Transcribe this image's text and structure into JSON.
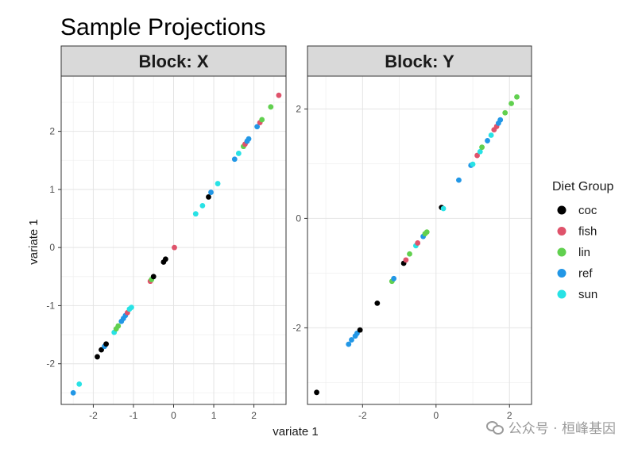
{
  "chart_data": {
    "type": "scatter",
    "title": "Sample Projections",
    "xlabel": "variate 1",
    "ylabel": "variate 1",
    "legend": {
      "title": "Diet Group",
      "entries": [
        {
          "name": "coc",
          "color": "#000000"
        },
        {
          "name": "fish",
          "color": "#DF536B"
        },
        {
          "name": "lin",
          "color": "#61D04F"
        },
        {
          "name": "ref",
          "color": "#2297E6"
        },
        {
          "name": "sun",
          "color": "#28E2E5"
        }
      ]
    },
    "panels": [
      {
        "strip": "Block: X",
        "xlim": [
          -2.8,
          2.8
        ],
        "ylim": [
          -2.7,
          2.95
        ],
        "xticks": [
          -2,
          -1,
          0,
          1,
          2
        ],
        "yticks": [
          -2,
          -1,
          0,
          1,
          2
        ],
        "points": [
          {
            "x": -2.5,
            "y": -2.5,
            "g": "ref"
          },
          {
            "x": -2.35,
            "y": -2.35,
            "g": "sun"
          },
          {
            "x": -1.9,
            "y": -1.88,
            "g": "coc"
          },
          {
            "x": -1.8,
            "y": -1.76,
            "g": "coc"
          },
          {
            "x": -1.72,
            "y": -1.7,
            "g": "ref"
          },
          {
            "x": -1.68,
            "y": -1.66,
            "g": "coc"
          },
          {
            "x": -1.48,
            "y": -1.46,
            "g": "sun"
          },
          {
            "x": -1.43,
            "y": -1.4,
            "g": "lin"
          },
          {
            "x": -1.38,
            "y": -1.35,
            "g": "lin"
          },
          {
            "x": -1.3,
            "y": -1.27,
            "g": "ref"
          },
          {
            "x": -1.25,
            "y": -1.22,
            "g": "ref"
          },
          {
            "x": -1.2,
            "y": -1.17,
            "g": "ref"
          },
          {
            "x": -1.15,
            "y": -1.12,
            "g": "fish"
          },
          {
            "x": -1.1,
            "y": -1.06,
            "g": "sun"
          },
          {
            "x": -1.05,
            "y": -1.03,
            "g": "sun"
          },
          {
            "x": -0.58,
            "y": -0.58,
            "g": "fish"
          },
          {
            "x": -0.55,
            "y": -0.55,
            "g": "lin"
          },
          {
            "x": -0.5,
            "y": -0.5,
            "g": "coc"
          },
          {
            "x": -0.25,
            "y": -0.25,
            "g": "coc"
          },
          {
            "x": -0.2,
            "y": -0.2,
            "g": "coc"
          },
          {
            "x": 0.02,
            "y": 0.0,
            "g": "fish"
          },
          {
            "x": 0.55,
            "y": 0.58,
            "g": "sun"
          },
          {
            "x": 0.72,
            "y": 0.72,
            "g": "sun"
          },
          {
            "x": 0.87,
            "y": 0.87,
            "g": "coc"
          },
          {
            "x": 0.93,
            "y": 0.95,
            "g": "ref"
          },
          {
            "x": 1.1,
            "y": 1.1,
            "g": "sun"
          },
          {
            "x": 1.52,
            "y": 1.52,
            "g": "ref"
          },
          {
            "x": 1.62,
            "y": 1.62,
            "g": "sun"
          },
          {
            "x": 1.74,
            "y": 1.74,
            "g": "lin"
          },
          {
            "x": 1.78,
            "y": 1.78,
            "g": "fish"
          },
          {
            "x": 1.83,
            "y": 1.83,
            "g": "ref"
          },
          {
            "x": 1.87,
            "y": 1.87,
            "g": "ref"
          },
          {
            "x": 2.08,
            "y": 2.08,
            "g": "ref"
          },
          {
            "x": 2.15,
            "y": 2.15,
            "g": "fish"
          },
          {
            "x": 2.2,
            "y": 2.2,
            "g": "lin"
          },
          {
            "x": 2.42,
            "y": 2.42,
            "g": "lin"
          },
          {
            "x": 2.62,
            "y": 2.62,
            "g": "fish"
          }
        ]
      },
      {
        "strip": "Block: Y",
        "xlim": [
          -3.5,
          2.6
        ],
        "ylim": [
          -3.4,
          2.6
        ],
        "xticks": [
          -2,
          0,
          2
        ],
        "yticks": [
          -2,
          0,
          2
        ],
        "points": [
          {
            "x": -3.25,
            "y": -3.18,
            "g": "coc"
          },
          {
            "x": -2.38,
            "y": -2.3,
            "g": "ref"
          },
          {
            "x": -2.3,
            "y": -2.22,
            "g": "ref"
          },
          {
            "x": -2.2,
            "y": -2.15,
            "g": "ref"
          },
          {
            "x": -2.15,
            "y": -2.1,
            "g": "ref"
          },
          {
            "x": -2.07,
            "y": -2.04,
            "g": "coc"
          },
          {
            "x": -1.6,
            "y": -1.55,
            "g": "coc"
          },
          {
            "x": -1.2,
            "y": -1.15,
            "g": "lin"
          },
          {
            "x": -1.15,
            "y": -1.1,
            "g": "ref"
          },
          {
            "x": -0.88,
            "y": -0.82,
            "g": "coc"
          },
          {
            "x": -0.82,
            "y": -0.76,
            "g": "fish"
          },
          {
            "x": -0.72,
            "y": -0.65,
            "g": "lin"
          },
          {
            "x": -0.55,
            "y": -0.5,
            "g": "sun"
          },
          {
            "x": -0.5,
            "y": -0.45,
            "g": "fish"
          },
          {
            "x": -0.35,
            "y": -0.33,
            "g": "ref"
          },
          {
            "x": -0.3,
            "y": -0.28,
            "g": "lin"
          },
          {
            "x": -0.25,
            "y": -0.25,
            "g": "lin"
          },
          {
            "x": 0.15,
            "y": 0.2,
            "g": "coc"
          },
          {
            "x": 0.2,
            "y": 0.18,
            "g": "sun"
          },
          {
            "x": 0.62,
            "y": 0.7,
            "g": "ref"
          },
          {
            "x": 0.95,
            "y": 0.97,
            "g": "ref"
          },
          {
            "x": 1.0,
            "y": 0.99,
            "g": "sun"
          },
          {
            "x": 1.12,
            "y": 1.15,
            "g": "fish"
          },
          {
            "x": 1.2,
            "y": 1.22,
            "g": "sun"
          },
          {
            "x": 1.25,
            "y": 1.3,
            "g": "lin"
          },
          {
            "x": 1.4,
            "y": 1.42,
            "g": "ref"
          },
          {
            "x": 1.5,
            "y": 1.52,
            "g": "sun"
          },
          {
            "x": 1.58,
            "y": 1.62,
            "g": "fish"
          },
          {
            "x": 1.65,
            "y": 1.68,
            "g": "fish"
          },
          {
            "x": 1.7,
            "y": 1.74,
            "g": "ref"
          },
          {
            "x": 1.75,
            "y": 1.8,
            "g": "ref"
          },
          {
            "x": 1.88,
            "y": 1.93,
            "g": "lin"
          },
          {
            "x": 2.05,
            "y": 2.1,
            "g": "lin"
          },
          {
            "x": 2.2,
            "y": 2.22,
            "g": "lin"
          }
        ]
      }
    ]
  },
  "watermark": {
    "text": "公众号 · 桓峰基因"
  }
}
